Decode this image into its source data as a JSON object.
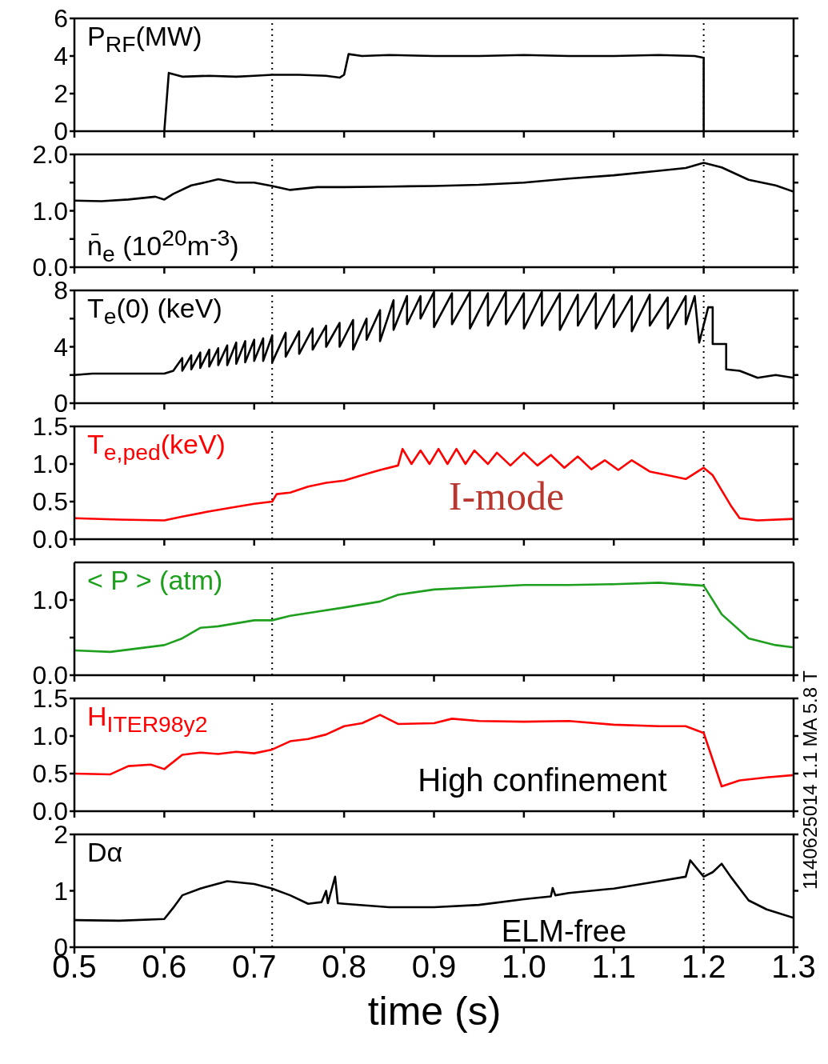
{
  "chart_data": [
    {
      "type": "line",
      "ylabel": "P$_{RF}$(MW)",
      "xlim": [
        0.5,
        1.3
      ],
      "xticks": [
        0.5,
        0.6,
        0.7,
        0.8,
        0.9,
        1,
        1.1,
        1.2,
        1.3
      ],
      "ylim": [
        0,
        6
      ],
      "yticks": [
        0,
        2,
        4,
        6
      ],
      "tick_labels": "y",
      "ref_lines": [
        {
          "axis": "x",
          "value": 0.72,
          "line_style": "dotted"
        },
        {
          "axis": "x",
          "value": 1.2,
          "line_style": "dotted"
        }
      ],
      "x": [
        0.6,
        0.605,
        0.62,
        0.65,
        0.68,
        0.7,
        0.72,
        0.75,
        0.78,
        0.795,
        0.8,
        0.805,
        0.82,
        0.85,
        0.9,
        0.95,
        1.0,
        1.05,
        1.1,
        1.15,
        1.19,
        1.2,
        1.2
      ],
      "series": [
        {
          "color": "#000000",
          "values": [
            0,
            3.1,
            2.9,
            2.95,
            2.9,
            2.95,
            3.0,
            3.0,
            2.95,
            2.85,
            3.0,
            4.1,
            4.0,
            4.05,
            4.0,
            4.0,
            4.05,
            4.0,
            4.0,
            4.05,
            4.0,
            3.9,
            0
          ]
        }
      ]
    },
    {
      "type": "line",
      "ylabel": "n̄$_{e}$ (10$^{20}$m$^{-3}$)",
      "xlim": [
        0.5,
        1.3
      ],
      "xticks": [
        0.5,
        0.6,
        0.7,
        0.8,
        0.9,
        1,
        1.1,
        1.2,
        1.3
      ],
      "ylim": [
        0,
        2
      ],
      "yticks": [
        {
          "value": 0,
          "label": "0.0"
        },
        {
          "value": 0.5,
          "label": null
        },
        {
          "value": 1,
          "label": "1.0"
        },
        {
          "value": 1.5,
          "label": null
        },
        {
          "value": 2,
          "label": "2.0"
        }
      ],
      "tick_labels": "y",
      "ref_lines": [
        {
          "axis": "x",
          "value": 0.72,
          "line_style": "dotted"
        },
        {
          "axis": "x",
          "value": 1.2,
          "line_style": "dotted"
        }
      ],
      "x": [
        0.5,
        0.53,
        0.56,
        0.59,
        0.6,
        0.61,
        0.63,
        0.65,
        0.66,
        0.68,
        0.7,
        0.72,
        0.74,
        0.77,
        0.8,
        0.85,
        0.9,
        0.95,
        1.0,
        1.05,
        1.1,
        1.15,
        1.18,
        1.2,
        1.22,
        1.25,
        1.28,
        1.3
      ],
      "series": [
        {
          "color": "#000000",
          "values": [
            1.18,
            1.17,
            1.2,
            1.25,
            1.2,
            1.3,
            1.45,
            1.52,
            1.56,
            1.5,
            1.5,
            1.44,
            1.37,
            1.42,
            1.42,
            1.43,
            1.44,
            1.46,
            1.5,
            1.57,
            1.63,
            1.71,
            1.76,
            1.85,
            1.77,
            1.55,
            1.45,
            1.34
          ]
        }
      ]
    },
    {
      "type": "line",
      "ylabel": "T$_{e}$(0) (keV)",
      "xlim": [
        0.5,
        1.3
      ],
      "xticks": [
        0.5,
        0.6,
        0.7,
        0.8,
        0.9,
        1,
        1.1,
        1.2,
        1.3
      ],
      "ylim": [
        0,
        8
      ],
      "yticks": [
        0,
        {
          "value": 2,
          "label": null
        },
        4,
        {
          "value": 6,
          "label": null
        },
        8
      ],
      "tick_labels": "y",
      "ref_lines": [
        {
          "axis": "x",
          "value": 0.72,
          "line_style": "dotted"
        },
        {
          "axis": "x",
          "value": 1.2,
          "line_style": "dotted"
        }
      ],
      "x": [
        0.5,
        0.52,
        0.55,
        0.6,
        0.61,
        0.62,
        0.62,
        0.63,
        0.63,
        0.64,
        0.64,
        0.65,
        0.65,
        0.66,
        0.66,
        0.67,
        0.67,
        0.68,
        0.68,
        0.69,
        0.69,
        0.7,
        0.7,
        0.71,
        0.71,
        0.72,
        0.72,
        0.735,
        0.735,
        0.75,
        0.75,
        0.765,
        0.765,
        0.78,
        0.78,
        0.795,
        0.795,
        0.81,
        0.81,
        0.825,
        0.825,
        0.84,
        0.84,
        0.855,
        0.855,
        0.87,
        0.87,
        0.885,
        0.885,
        0.9,
        0.9,
        0.92,
        0.92,
        0.94,
        0.94,
        0.96,
        0.96,
        0.98,
        0.98,
        1.0,
        1.0,
        1.02,
        1.02,
        1.04,
        1.04,
        1.06,
        1.06,
        1.08,
        1.08,
        1.1,
        1.1,
        1.12,
        1.12,
        1.14,
        1.14,
        1.16,
        1.16,
        1.18,
        1.18,
        1.19,
        1.195,
        1.205,
        1.21,
        1.21,
        1.225,
        1.225,
        1.24,
        1.26,
        1.28,
        1.3
      ],
      "series": [
        {
          "color": "#000000",
          "values": [
            2.0,
            2.1,
            2.1,
            2.1,
            2.3,
            3.2,
            2.3,
            3.4,
            2.4,
            3.6,
            2.5,
            3.8,
            2.6,
            3.9,
            2.7,
            4.1,
            2.7,
            4.3,
            2.8,
            4.4,
            2.9,
            4.5,
            3.0,
            4.6,
            3.0,
            4.8,
            2.9,
            5.0,
            3.3,
            5.1,
            3.5,
            5.3,
            3.8,
            5.5,
            4.0,
            5.7,
            4.0,
            5.9,
            3.8,
            6.0,
            4.5,
            6.6,
            4.4,
            7.3,
            5.2,
            7.6,
            5.6,
            7.6,
            6.0,
            7.9,
            5.4,
            7.8,
            5.6,
            7.9,
            5.3,
            7.8,
            5.5,
            7.9,
            5.6,
            7.8,
            5.3,
            7.9,
            5.5,
            7.8,
            5.2,
            7.7,
            5.5,
            7.8,
            5.3,
            7.7,
            5.4,
            7.6,
            5.1,
            7.7,
            5.5,
            7.5,
            5.3,
            7.6,
            5.6,
            7.6,
            4.3,
            6.8,
            6.8,
            4.2,
            4.2,
            2.4,
            2.3,
            1.8,
            2.0,
            1.8
          ]
        }
      ]
    },
    {
      "type": "line",
      "ylabel": "T$_{e,ped}$(keV)",
      "annotations": [
        "I-mode"
      ],
      "xlim": [
        0.5,
        1.3
      ],
      "xticks": [
        0.5,
        0.6,
        0.7,
        0.8,
        0.9,
        1,
        1.1,
        1.2,
        1.3
      ],
      "ylim": [
        0,
        1.5
      ],
      "yticks": [
        {
          "value": 0,
          "label": "0.0"
        },
        0.5,
        {
          "value": 1,
          "label": "1.0"
        },
        1.5
      ],
      "tick_labels": "y",
      "ref_lines": [
        {
          "axis": "x",
          "value": 0.72,
          "line_style": "dotted"
        },
        {
          "axis": "x",
          "value": 1.2,
          "line_style": "dotted"
        }
      ],
      "x": [
        0.5,
        0.55,
        0.6,
        0.62,
        0.65,
        0.68,
        0.7,
        0.72,
        0.725,
        0.74,
        0.76,
        0.78,
        0.8,
        0.82,
        0.84,
        0.86,
        0.865,
        0.875,
        0.885,
        0.895,
        0.905,
        0.915,
        0.925,
        0.935,
        0.945,
        0.96,
        0.97,
        0.985,
        1.0,
        1.015,
        1.03,
        1.045,
        1.06,
        1.075,
        1.09,
        1.105,
        1.12,
        1.14,
        1.16,
        1.18,
        1.2,
        1.21,
        1.22,
        1.23,
        1.24,
        1.26,
        1.3
      ],
      "series": [
        {
          "color": "#ff0000",
          "values": [
            0.28,
            0.26,
            0.25,
            0.3,
            0.37,
            0.43,
            0.47,
            0.5,
            0.6,
            0.62,
            0.7,
            0.75,
            0.78,
            0.85,
            0.92,
            0.98,
            1.2,
            1.0,
            1.18,
            1.0,
            1.2,
            1.0,
            1.2,
            1.0,
            1.18,
            1.0,
            1.15,
            0.98,
            1.15,
            0.98,
            1.12,
            0.95,
            1.1,
            0.93,
            1.05,
            0.92,
            1.05,
            0.9,
            0.85,
            0.8,
            0.95,
            0.85,
            0.65,
            0.45,
            0.28,
            0.25,
            0.27
          ]
        }
      ]
    },
    {
      "type": "line",
      "ylabel": "< P > (atm)",
      "xlim": [
        0.5,
        1.3
      ],
      "xticks": [
        0.5,
        0.6,
        0.7,
        0.8,
        0.9,
        1,
        1.1,
        1.2,
        1.3
      ],
      "ylim": [
        0,
        1.5
      ],
      "yticks": [
        {
          "value": 0,
          "label": "0.0"
        },
        {
          "value": 0.5,
          "label": null
        },
        {
          "value": 1,
          "label": "1.0"
        }
      ],
      "tick_labels": "y",
      "ref_lines": [
        {
          "axis": "x",
          "value": 0.72,
          "line_style": "dotted"
        },
        {
          "axis": "x",
          "value": 1.2,
          "line_style": "dotted"
        }
      ],
      "x": [
        0.5,
        0.54,
        0.6,
        0.62,
        0.64,
        0.66,
        0.7,
        0.72,
        0.74,
        0.8,
        0.84,
        0.86,
        0.9,
        0.95,
        1.0,
        1.05,
        1.1,
        1.15,
        1.2,
        1.22,
        1.25,
        1.28,
        1.3
      ],
      "series": [
        {
          "color": "#1ea01e",
          "values": [
            0.33,
            0.31,
            0.4,
            0.49,
            0.63,
            0.65,
            0.73,
            0.73,
            0.79,
            0.9,
            0.98,
            1.07,
            1.14,
            1.17,
            1.2,
            1.2,
            1.21,
            1.23,
            1.19,
            0.81,
            0.49,
            0.4,
            0.37
          ]
        }
      ]
    },
    {
      "type": "line",
      "ylabel": "H$_{ITER98y2}$",
      "annotations": [
        "High confinement"
      ],
      "xlim": [
        0.5,
        1.3
      ],
      "xticks": [
        0.5,
        0.6,
        0.7,
        0.8,
        0.9,
        1,
        1.1,
        1.2,
        1.3
      ],
      "ylim": [
        0,
        1.5
      ],
      "yticks": [
        {
          "value": 0,
          "label": "0.0"
        },
        0.5,
        {
          "value": 1,
          "label": "1.0"
        },
        1.5
      ],
      "tick_labels": "y",
      "ref_lines": [
        {
          "axis": "x",
          "value": 0.72,
          "line_style": "dotted"
        },
        {
          "axis": "x",
          "value": 1.2,
          "line_style": "dotted"
        }
      ],
      "x": [
        0.5,
        0.54,
        0.56,
        0.585,
        0.6,
        0.62,
        0.64,
        0.66,
        0.68,
        0.7,
        0.72,
        0.74,
        0.76,
        0.78,
        0.8,
        0.82,
        0.84,
        0.86,
        0.9,
        0.92,
        0.95,
        1.0,
        1.05,
        1.1,
        1.15,
        1.18,
        1.2,
        1.22,
        1.24,
        1.27,
        1.3
      ],
      "series": [
        {
          "color": "#ff0000",
          "values": [
            0.5,
            0.49,
            0.6,
            0.62,
            0.56,
            0.75,
            0.78,
            0.76,
            0.79,
            0.77,
            0.82,
            0.93,
            0.96,
            1.02,
            1.13,
            1.17,
            1.28,
            1.16,
            1.17,
            1.23,
            1.2,
            1.19,
            1.2,
            1.15,
            1.13,
            1.13,
            1.04,
            0.33,
            0.41,
            0.45,
            0.48
          ]
        }
      ]
    },
    {
      "type": "line",
      "ylabel": "Dα",
      "xlabel": "time (s)",
      "annotations": [
        "ELM-free",
        "1140625014 1.1 MA 5.8 T"
      ],
      "xlim": [
        0.5,
        1.3
      ],
      "xticks": [
        0.5,
        0.6,
        0.7,
        0.8,
        0.9,
        {
          "value": 1,
          "label": "1.0"
        },
        1.1,
        1.2,
        1.3
      ],
      "ylim": [
        0,
        2
      ],
      "yticks": [
        0,
        1,
        2
      ],
      "ref_lines": [
        {
          "axis": "x",
          "value": 0.72,
          "line_style": "dotted"
        },
        {
          "axis": "x",
          "value": 1.2,
          "line_style": "dotted"
        }
      ],
      "x": [
        0.5,
        0.55,
        0.6,
        0.61,
        0.62,
        0.64,
        0.67,
        0.7,
        0.72,
        0.74,
        0.76,
        0.775,
        0.78,
        0.782,
        0.79,
        0.793,
        0.8,
        0.85,
        0.9,
        0.95,
        1.0,
        1.03,
        1.032,
        1.035,
        1.05,
        1.1,
        1.15,
        1.18,
        1.185,
        1.2,
        1.21,
        1.22,
        1.23,
        1.25,
        1.27,
        1.3
      ],
      "series": [
        {
          "color": "#000000",
          "values": [
            0.48,
            0.47,
            0.5,
            0.7,
            0.92,
            1.04,
            1.17,
            1.12,
            1.04,
            0.92,
            0.77,
            0.8,
            1.0,
            0.78,
            1.25,
            0.78,
            0.77,
            0.71,
            0.71,
            0.75,
            0.85,
            0.9,
            1.05,
            0.92,
            0.96,
            1.04,
            1.17,
            1.25,
            1.54,
            1.25,
            1.33,
            1.48,
            1.25,
            0.83,
            0.67,
            0.52
          ]
        }
      ]
    }
  ]
}
